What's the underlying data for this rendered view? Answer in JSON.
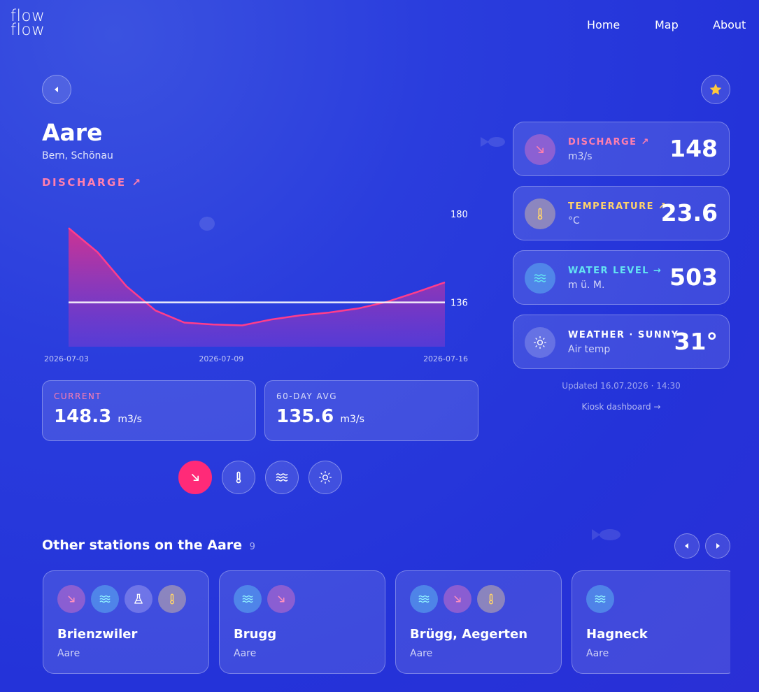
{
  "nav": {
    "logo": [
      "flow",
      "flow"
    ],
    "links": [
      "Home",
      "Map",
      "About"
    ]
  },
  "station": {
    "name": "Aare",
    "location": "Bern, Schönau",
    "metric": "DISCHARGE ↗"
  },
  "chart_data": {
    "type": "area",
    "x": [
      "2026-07-03",
      "2026-07-04",
      "2026-07-05",
      "2026-07-06",
      "2026-07-07",
      "2026-07-08",
      "2026-07-09",
      "2026-07-10",
      "2026-07-11",
      "2026-07-12",
      "2026-07-13",
      "2026-07-14",
      "2026-07-15",
      "2026-07-16"
    ],
    "values": [
      173,
      161,
      144,
      132,
      126,
      125,
      124.6,
      127.5,
      129.6,
      131,
      133,
      136.3,
      141,
      146
    ],
    "color": "#ff3d8b",
    "xlim": [
      "2026-07-03",
      "2026-07-16"
    ],
    "xticks": [
      "2026-07-03",
      "2026-07-09",
      "2026-07-16"
    ],
    "ylim": [
      114,
      180
    ],
    "yticks": [
      180
    ],
    "reference_line": {
      "value": 136,
      "color": "#ffffff"
    }
  },
  "stats": [
    {
      "label": "CURRENT",
      "value": 148.3,
      "unit": "m3/s"
    },
    {
      "label": "60-DAY AVG",
      "value": 135.6,
      "unit": "m3/s"
    }
  ],
  "readings": [
    {
      "label": "DISCHARGE ↗",
      "unit": "m3/s",
      "value": 148,
      "color": "#ff7fae"
    },
    {
      "label": "TEMPERATURE ↗",
      "unit": "°C",
      "value": 23.6,
      "color": "#ffd36a"
    },
    {
      "label": "WATER LEVEL →",
      "unit": "m ü. M.",
      "value": 503,
      "color": "#63e3f2"
    },
    {
      "label": "WEATHER · SUNNY",
      "unit": "Air temp",
      "value": "31°",
      "color": "#ffffff"
    }
  ],
  "updated": "Updated 16.07.2026 · 14:30",
  "kiosk": "Kiosk dashboard →",
  "others": {
    "title": "Other stations on the Aare",
    "count": 9,
    "stations": [
      {
        "name": "Brienzwiler",
        "river": "Aare"
      },
      {
        "name": "Brugg",
        "river": "Aare"
      },
      {
        "name": "Brügg, Aegerten",
        "river": "Aare"
      },
      {
        "name": "Hagneck",
        "river": "Aare"
      }
    ]
  }
}
